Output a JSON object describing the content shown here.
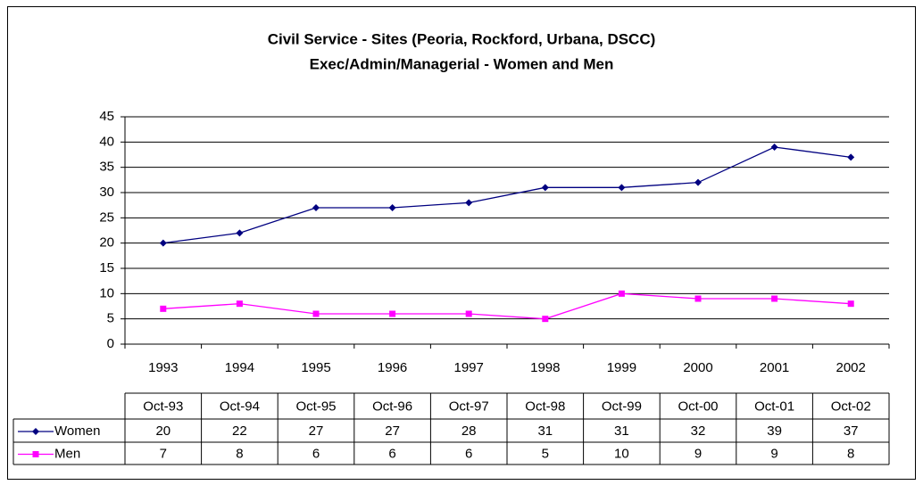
{
  "chart_data": {
    "type": "line",
    "title": [
      "Civil Service - Sites (Peoria, Rockford, Urbana, DSCC)",
      "Exec/Admin/Managerial - Women and Men"
    ],
    "categories": [
      "1993",
      "1994",
      "1995",
      "1996",
      "1997",
      "1998",
      "1999",
      "2000",
      "2001",
      "2002"
    ],
    "data_table_columns": [
      "Oct-93",
      "Oct-94",
      "Oct-95",
      "Oct-96",
      "Oct-97",
      "Oct-98",
      "Oct-99",
      "Oct-00",
      "Oct-01",
      "Oct-02"
    ],
    "series": [
      {
        "name": "Women",
        "color": "#000080",
        "marker": "diamond",
        "values": [
          20,
          22,
          27,
          27,
          28,
          31,
          31,
          32,
          39,
          37
        ]
      },
      {
        "name": "Men",
        "color": "#ff00ff",
        "marker": "square",
        "values": [
          7,
          8,
          6,
          6,
          6,
          5,
          10,
          9,
          9,
          8
        ]
      }
    ],
    "ylim": [
      0,
      45
    ],
    "yticks": [
      0,
      5,
      10,
      15,
      20,
      25,
      30,
      35,
      40,
      45
    ],
    "grid": true
  }
}
